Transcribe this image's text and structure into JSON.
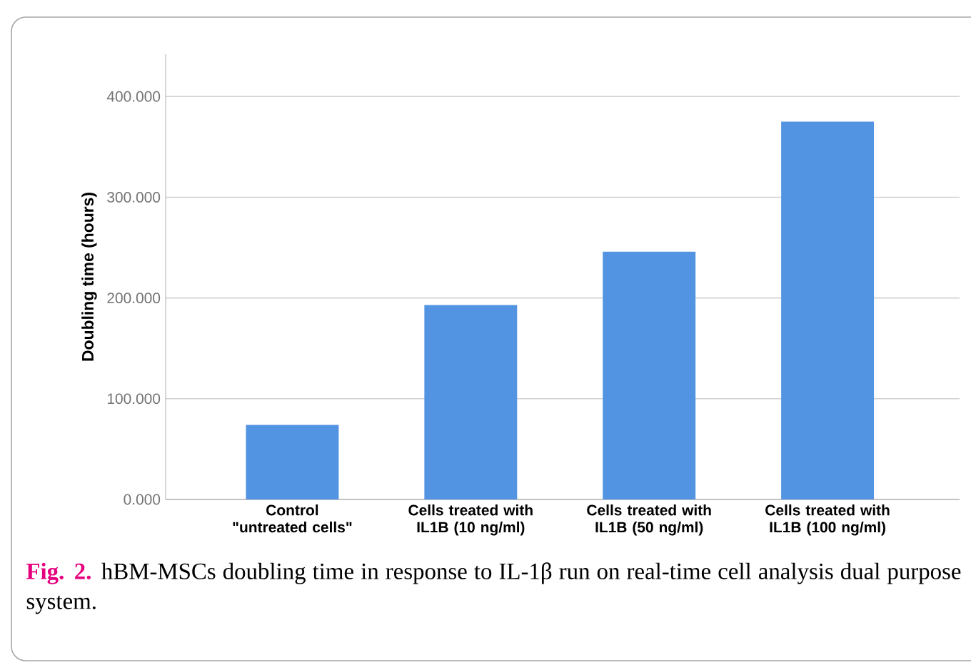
{
  "chart_data": {
    "type": "bar",
    "ylabel": "Doubling time (hours)",
    "categories": [
      "Control \"untreated cells\"",
      "Cells treated with IL1B (10 ng/ml)",
      "Cells treated with IL1B (50 ng/ml)",
      "Cells treated with IL1B (100 ng/ml)"
    ],
    "values": [
      74,
      193,
      246,
      375
    ],
    "color": "#5294e2",
    "ylim": [
      0,
      442
    ],
    "yticks": [
      {
        "value": 0,
        "label": "0.000"
      },
      {
        "value": 100,
        "label": "100.000"
      },
      {
        "value": 200,
        "label": "200.000"
      },
      {
        "value": 300,
        "label": "300.000"
      },
      {
        "value": 400,
        "label": "400.000"
      }
    ],
    "grid": "y",
    "annotations": [
      "Fig. 2.",
      "hBM-MSCs doubling time in response to IL-1β run on real-time cell analysis dual purpose system."
    ]
  }
}
